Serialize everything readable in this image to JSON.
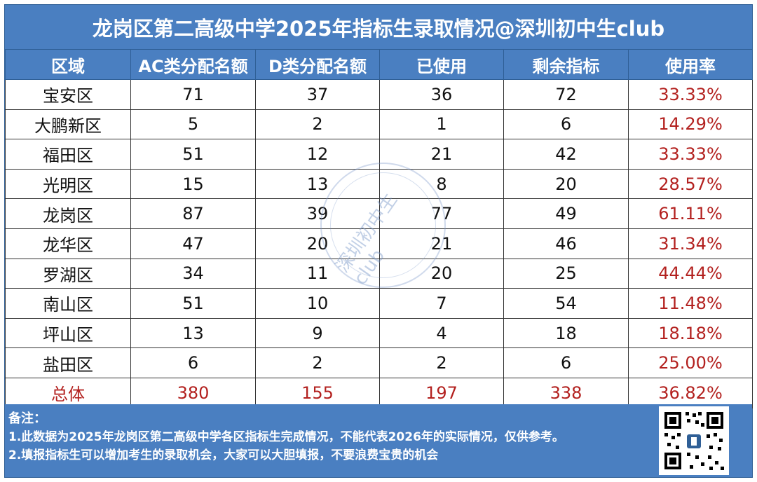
{
  "title": "龙岗区第二高级中学2025年指标生录取情况@深圳初中生club",
  "headers": [
    "区域",
    "AC类分配名额",
    "D类分配名额",
    "已使用",
    "剩余指标",
    "使用率"
  ],
  "rows": [
    [
      "宝安区",
      "71",
      "37",
      "36",
      "72",
      "33.33%"
    ],
    [
      "大鹏新区",
      "5",
      "2",
      "1",
      "6",
      "14.29%"
    ],
    [
      "福田区",
      "51",
      "12",
      "21",
      "42",
      "33.33%"
    ],
    [
      "光明区",
      "15",
      "13",
      "8",
      "20",
      "28.57%"
    ],
    [
      "龙岗区",
      "87",
      "39",
      "77",
      "49",
      "61.11%"
    ],
    [
      "龙华区",
      "47",
      "20",
      "21",
      "46",
      "31.34%"
    ],
    [
      "罗湖区",
      "34",
      "11",
      "20",
      "25",
      "44.44%"
    ],
    [
      "南山区",
      "51",
      "10",
      "7",
      "54",
      "11.48%"
    ],
    [
      "坪山区",
      "13",
      "9",
      "4",
      "18",
      "18.18%"
    ],
    [
      "盐田区",
      "6",
      "2",
      "2",
      "6",
      "25.00%"
    ]
  ],
  "total": [
    "总体",
    "380",
    "155",
    "197",
    "338",
    "36.82%"
  ],
  "watermark": "深圳初中生club",
  "notes": {
    "title": "备注：",
    "line1": "1.此数据为2025年龙岗区第二高级中学各区指标生完成情况，不能代表2026年的实际情况，仅供参考。",
    "line2": "2.填报指标生可以增加考生的录取机会，大家可以大胆填报，不要浪费宝贵的机会"
  },
  "colors": {
    "header_bg": "#4a7fc1",
    "rate_text": "#b3211f",
    "total_text": "#b3211f"
  },
  "qr_icon": "qr-code-icon"
}
